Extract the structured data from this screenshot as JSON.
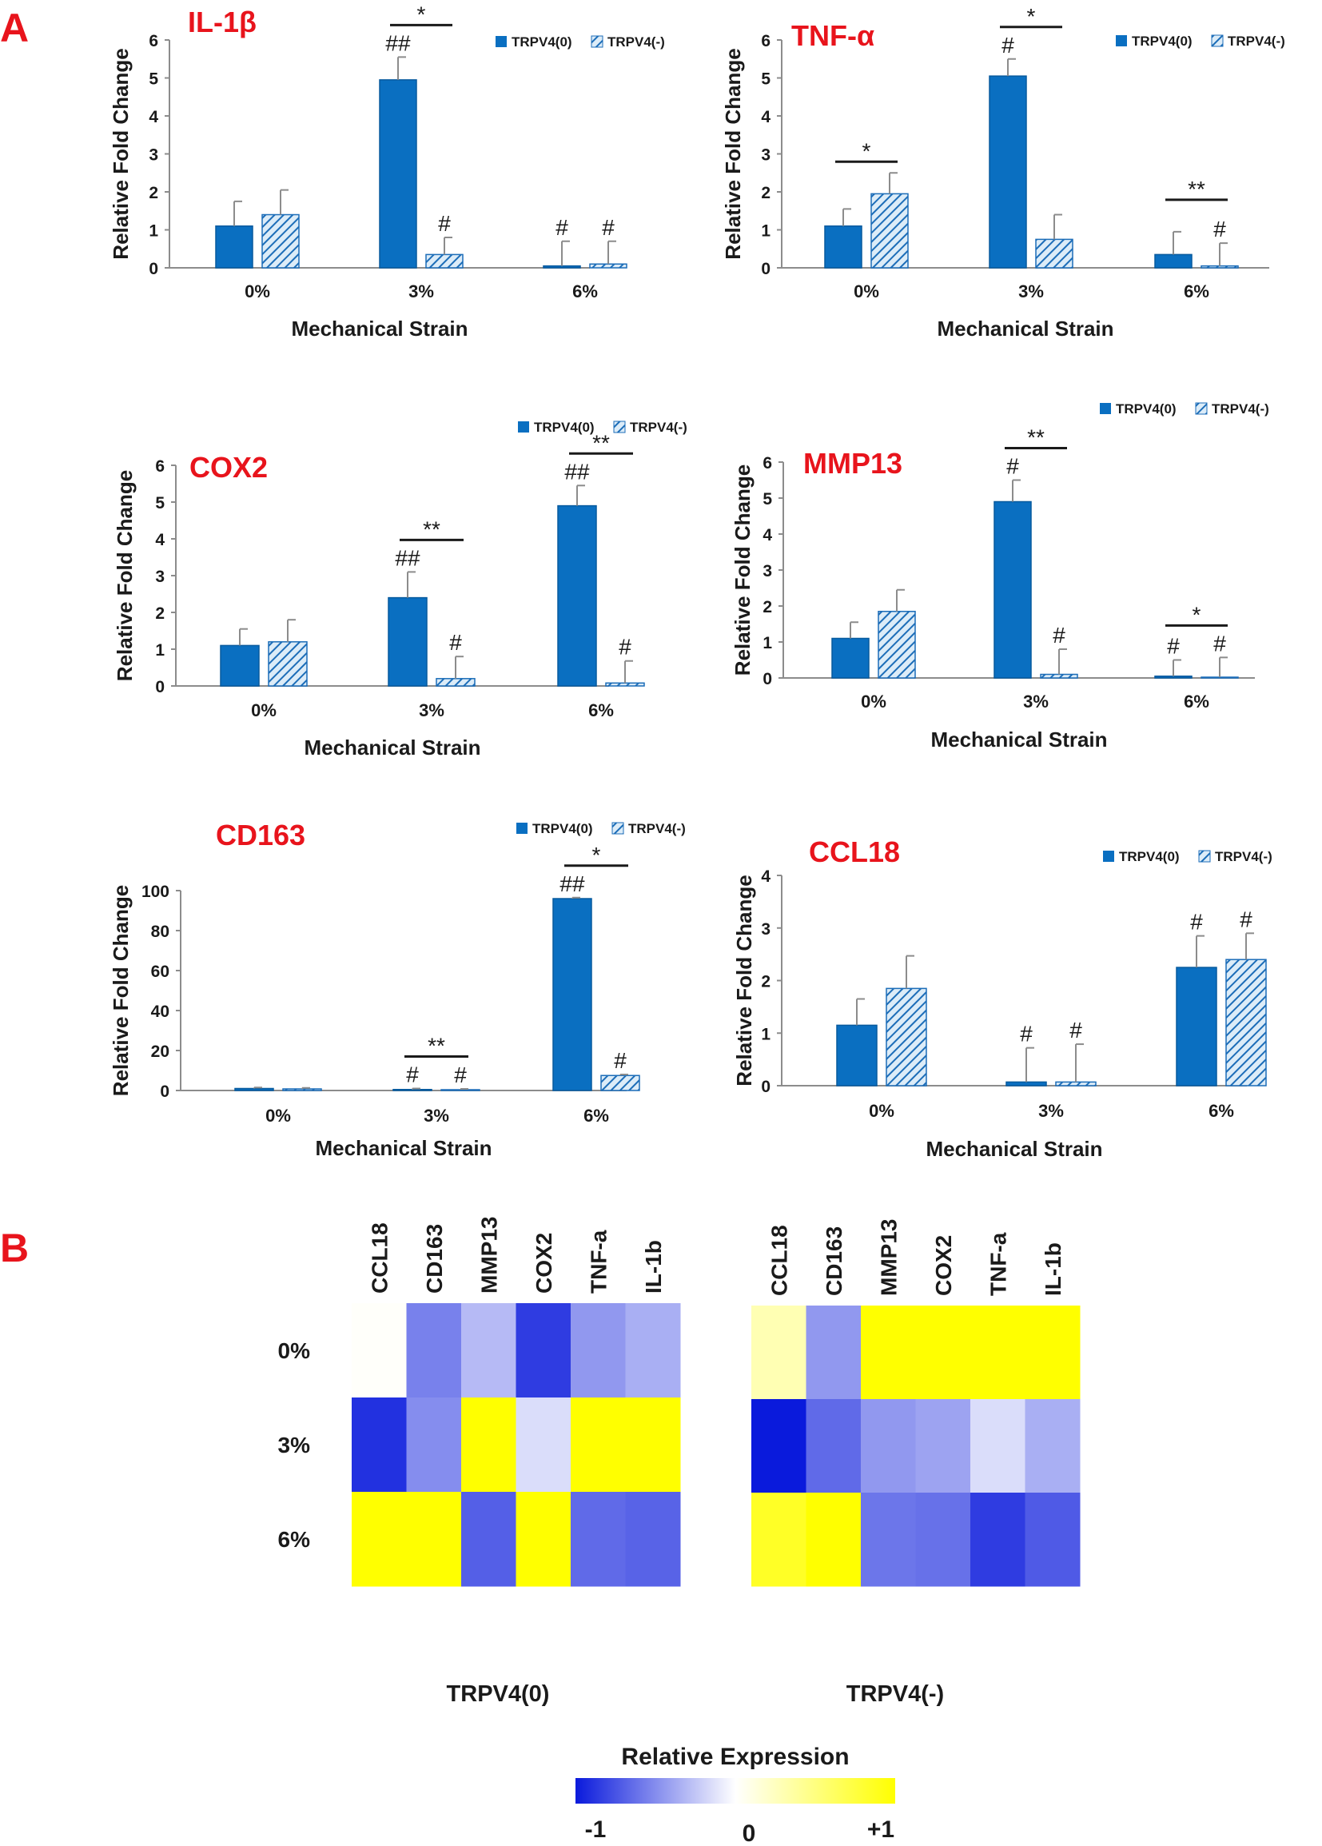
{
  "panels": {
    "a": "A",
    "b": "B"
  },
  "colors": {
    "bar_solid": "#0a6fc1",
    "hatch_line": "#1c6db8",
    "hatch_bg": "#dcecf8",
    "axis": "#8c8c8c",
    "title_red": "#e8141c"
  },
  "chart_data": [
    {
      "type": "bar",
      "title": "IL-1β",
      "xlabel": "Mechanical Strain",
      "ylabel": "Relative Fold Change",
      "categories": [
        "0%",
        "3%",
        "6%"
      ],
      "ylim": [
        0,
        6
      ],
      "yticks": [
        0,
        1,
        2,
        3,
        4,
        5,
        6
      ],
      "legend_position": "top-right",
      "series": [
        {
          "name": "TRPV4(0)",
          "values": [
            1.1,
            4.95,
            0.05
          ],
          "errors": [
            0.65,
            0.6,
            0.65
          ]
        },
        {
          "name": "TRPV4(-)",
          "values": [
            1.4,
            0.35,
            0.1
          ],
          "errors": [
            0.65,
            0.45,
            0.6
          ]
        }
      ],
      "annotations": [
        {
          "text": "##",
          "category": 1,
          "series": 0
        },
        {
          "text": "#",
          "category": 1,
          "series": 1
        },
        {
          "text": "#",
          "category": 2,
          "series": 0
        },
        {
          "text": "#",
          "category": 2,
          "series": 1
        }
      ],
      "brackets": [
        {
          "text": "*",
          "category": 1
        }
      ]
    },
    {
      "type": "bar",
      "title": "TNF-α",
      "xlabel": "Mechanical Strain",
      "ylabel": "Relative Fold Change",
      "categories": [
        "0%",
        "3%",
        "6%"
      ],
      "ylim": [
        0,
        6
      ],
      "yticks": [
        0,
        1,
        2,
        3,
        4,
        5,
        6
      ],
      "legend_position": "top-right",
      "series": [
        {
          "name": "TRPV4(0)",
          "values": [
            1.1,
            5.05,
            0.35
          ],
          "errors": [
            0.45,
            0.45,
            0.6
          ]
        },
        {
          "name": "TRPV4(-)",
          "values": [
            1.95,
            0.75,
            0.05
          ],
          "errors": [
            0.55,
            0.65,
            0.6
          ]
        }
      ],
      "annotations": [
        {
          "text": "#",
          "category": 1,
          "series": 0
        },
        {
          "text": "#",
          "category": 2,
          "series": 1
        }
      ],
      "brackets": [
        {
          "text": "*",
          "category": 0
        },
        {
          "text": "*",
          "category": 1
        },
        {
          "text": "**",
          "category": 2
        }
      ]
    },
    {
      "type": "bar",
      "title": "COX2",
      "xlabel": "Mechanical Strain",
      "ylabel": "Relative Fold Change",
      "categories": [
        "0%",
        "3%",
        "6%"
      ],
      "ylim": [
        0,
        6
      ],
      "yticks": [
        0,
        1,
        2,
        3,
        4,
        5,
        6
      ],
      "legend_position": "top-right",
      "series": [
        {
          "name": "TRPV4(0)",
          "values": [
            1.1,
            2.4,
            4.9
          ],
          "errors": [
            0.45,
            0.7,
            0.55
          ]
        },
        {
          "name": "TRPV4(-)",
          "values": [
            1.2,
            0.2,
            0.08
          ],
          "errors": [
            0.6,
            0.6,
            0.6
          ]
        }
      ],
      "annotations": [
        {
          "text": "##",
          "category": 1,
          "series": 0
        },
        {
          "text": "#",
          "category": 1,
          "series": 1
        },
        {
          "text": "##",
          "category": 2,
          "series": 0
        },
        {
          "text": "#",
          "category": 2,
          "series": 1
        }
      ],
      "brackets": [
        {
          "text": "**",
          "category": 1
        },
        {
          "text": "**",
          "category": 2
        }
      ]
    },
    {
      "type": "bar",
      "title": "MMP13",
      "xlabel": "Mechanical Strain",
      "ylabel": "Relative Fold Change",
      "categories": [
        "0%",
        "3%",
        "6%"
      ],
      "ylim": [
        0,
        6
      ],
      "yticks": [
        0,
        1,
        2,
        3,
        4,
        5,
        6
      ],
      "legend_position": "top-right",
      "series": [
        {
          "name": "TRPV4(0)",
          "values": [
            1.1,
            4.9,
            0.05
          ],
          "errors": [
            0.45,
            0.6,
            0.45
          ]
        },
        {
          "name": "TRPV4(-)",
          "values": [
            1.85,
            0.1,
            0.02
          ],
          "errors": [
            0.6,
            0.7,
            0.55
          ]
        }
      ],
      "annotations": [
        {
          "text": "#",
          "category": 1,
          "series": 0
        },
        {
          "text": "#",
          "category": 1,
          "series": 1
        },
        {
          "text": "#",
          "category": 2,
          "series": 0
        },
        {
          "text": "#",
          "category": 2,
          "series": 1
        }
      ],
      "brackets": [
        {
          "text": "**",
          "category": 1
        },
        {
          "text": "*",
          "category": 2
        }
      ]
    },
    {
      "type": "bar",
      "title": "CD163",
      "xlabel": "Mechanical Strain",
      "ylabel": "Relative Fold Change",
      "categories": [
        "0%",
        "3%",
        "6%"
      ],
      "ylim": [
        0,
        100
      ],
      "yticks": [
        0,
        20,
        40,
        60,
        80,
        100
      ],
      "legend_position": "top-right",
      "series": [
        {
          "name": "TRPV4(0)",
          "values": [
            1,
            0.5,
            96
          ],
          "errors": [
            0.5,
            0.5,
            0.5
          ]
        },
        {
          "name": "TRPV4(-)",
          "values": [
            0.8,
            0.3,
            7.5
          ],
          "errors": [
            0.5,
            0.5,
            0.5
          ]
        }
      ],
      "annotations": [
        {
          "text": "#",
          "category": 1,
          "series": 0
        },
        {
          "text": "#",
          "category": 1,
          "series": 1
        },
        {
          "text": "##",
          "category": 2,
          "series": 0
        },
        {
          "text": "#",
          "category": 2,
          "series": 1
        }
      ],
      "brackets": [
        {
          "text": "**",
          "category": 1
        },
        {
          "text": "*",
          "category": 2
        }
      ]
    },
    {
      "type": "bar",
      "title": "CCL18",
      "xlabel": "Mechanical Strain",
      "ylabel": "Relative Fold Change",
      "categories": [
        "0%",
        "3%",
        "6%"
      ],
      "ylim": [
        0,
        4
      ],
      "yticks": [
        0,
        1,
        2,
        3,
        4
      ],
      "legend_position": "top-right",
      "series": [
        {
          "name": "TRPV4(0)",
          "values": [
            1.15,
            0.07,
            2.25
          ],
          "errors": [
            0.5,
            0.65,
            0.6
          ]
        },
        {
          "name": "TRPV4(-)",
          "values": [
            1.85,
            0.07,
            2.4
          ],
          "errors": [
            0.62,
            0.72,
            0.5
          ]
        }
      ],
      "annotations": [
        {
          "text": "#",
          "category": 1,
          "series": 0
        },
        {
          "text": "#",
          "category": 1,
          "series": 1
        },
        {
          "text": "#",
          "category": 2,
          "series": 0
        },
        {
          "text": "#",
          "category": 2,
          "series": 1
        }
      ],
      "brackets": []
    },
    {
      "type": "heatmap",
      "title": "TRPV4(0)",
      "columns": [
        "CCL18",
        "CD163",
        "MMP13",
        "COX2",
        "TNF-a",
        "IL-1b"
      ],
      "rows": [
        "0%",
        "3%",
        "6%"
      ],
      "range": [
        -1,
        1
      ],
      "values": [
        [
          0.02,
          -0.55,
          -0.3,
          -0.85,
          -0.45,
          -0.35
        ],
        [
          -0.9,
          -0.5,
          1.0,
          -0.15,
          1.0,
          1.0
        ],
        [
          1.0,
          1.0,
          -0.7,
          1.0,
          -0.65,
          -0.68
        ]
      ]
    },
    {
      "type": "heatmap",
      "title": "TRPV4(-)",
      "columns": [
        "CCL18",
        "CD163",
        "MMP13",
        "COX2",
        "TNF-a",
        "IL-1b"
      ],
      "rows": [
        "0%",
        "3%",
        "6%"
      ],
      "range": [
        -1,
        1
      ],
      "values": [
        [
          0.3,
          -0.45,
          1.0,
          1.0,
          1.0,
          1.0
        ],
        [
          -1.0,
          -0.65,
          -0.45,
          -0.4,
          -0.15,
          -0.35
        ],
        [
          0.85,
          1.0,
          -0.6,
          -0.62,
          -0.85,
          -0.72
        ]
      ]
    }
  ],
  "colorbar": {
    "title": "Relative Expression",
    "ticks": [
      "-1",
      "0",
      "+1"
    ],
    "range": [
      -1,
      1
    ]
  }
}
